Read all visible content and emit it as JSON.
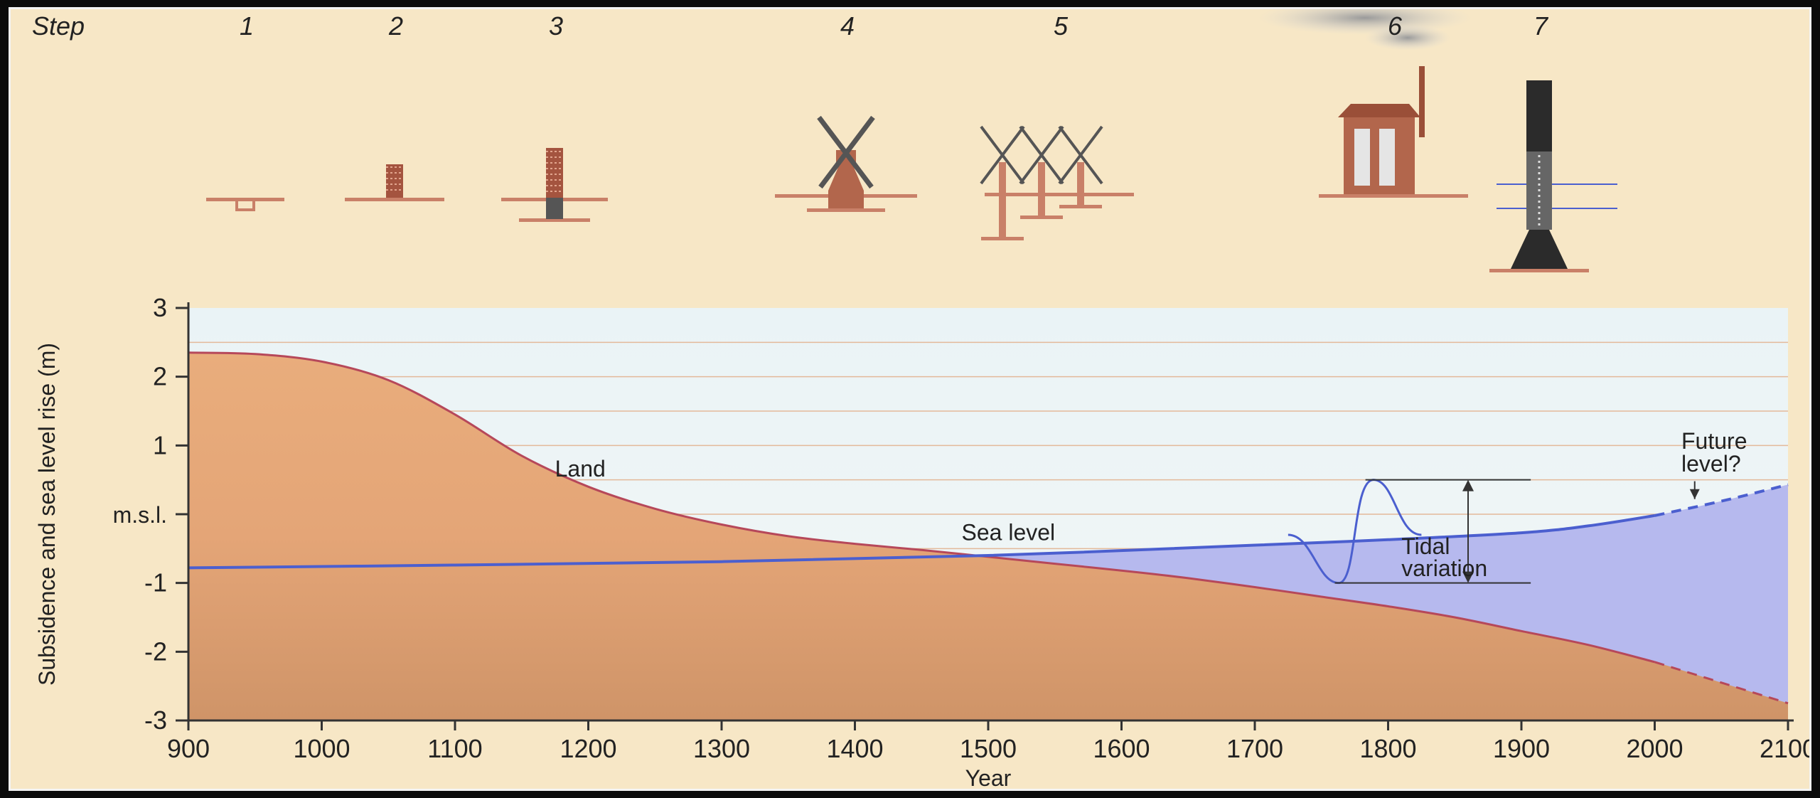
{
  "steps": {
    "label": "Step",
    "items": [
      {
        "n": "1",
        "icon": "ditch-icon"
      },
      {
        "n": "2",
        "icon": "mound-icon"
      },
      {
        "n": "3",
        "icon": "dyke-icon"
      },
      {
        "n": "4",
        "icon": "windmill-icon"
      },
      {
        "n": "5",
        "icon": "windmill-row-icon"
      },
      {
        "n": "6",
        "icon": "steam-pump-house-icon"
      },
      {
        "n": "7",
        "icon": "modern-pump-tower-icon"
      }
    ]
  },
  "chart_data": {
    "type": "line",
    "xlabel": "Year",
    "ylabel": "Subsidence and sea level rise (m)",
    "xlim": [
      900,
      2100
    ],
    "ylim": [
      -3,
      3
    ],
    "x_ticks": [
      900,
      1000,
      1100,
      1200,
      1300,
      1400,
      1500,
      1600,
      1700,
      1800,
      1900,
      2000,
      2100
    ],
    "y_ticks": [
      {
        "v": 3,
        "label": "3"
      },
      {
        "v": 2,
        "label": "2"
      },
      {
        "v": 1,
        "label": "1"
      },
      {
        "v": 0,
        "label": "m.s.l."
      },
      {
        "v": -1,
        "label": "-1"
      },
      {
        "v": -2,
        "label": "-2"
      },
      {
        "v": -3,
        "label": "-3"
      }
    ],
    "series": [
      {
        "name": "Land",
        "x": [
          900,
          950,
          1000,
          1050,
          1100,
          1150,
          1200,
          1250,
          1300,
          1350,
          1400,
          1450,
          1500,
          1550,
          1600,
          1650,
          1700,
          1750,
          1800,
          1850,
          1900,
          1950,
          2000,
          2050,
          2100
        ],
        "y": [
          2.35,
          2.33,
          2.22,
          1.95,
          1.45,
          0.85,
          0.4,
          0.08,
          -0.15,
          -0.32,
          -0.43,
          -0.52,
          -0.62,
          -0.72,
          -0.82,
          -0.93,
          -1.06,
          -1.2,
          -1.34,
          -1.5,
          -1.7,
          -1.9,
          -2.15,
          -2.45,
          -2.75
        ],
        "projected_from": 2000
      },
      {
        "name": "Sea level",
        "x": [
          900,
          1100,
          1300,
          1500,
          1700,
          1800,
          1900,
          1950,
          2000,
          2050,
          2100
        ],
        "y": [
          -0.78,
          -0.74,
          -0.69,
          -0.6,
          -0.45,
          -0.37,
          -0.27,
          -0.17,
          -0.02,
          0.19,
          0.43
        ],
        "projected_from": 2000
      }
    ],
    "annotations": [
      {
        "text": "Land",
        "x": 1175,
        "y": 0.55
      },
      {
        "text": "Sea level",
        "x": 1480,
        "y": -0.38
      },
      {
        "text": "Tidal",
        "x": 1810,
        "y": -0.58
      },
      {
        "text": "variation",
        "x": 1810,
        "y": -0.9
      },
      {
        "text": "Future",
        "x": 2020,
        "y": 0.95
      },
      {
        "text": "level?",
        "x": 2020,
        "y": 0.62
      }
    ],
    "tidal_variation": {
      "x": 1725,
      "center": -0.3,
      "high": 0.5,
      "low": -1.0
    },
    "colors": {
      "land": "#e7a97a",
      "land_line": "#b6485a",
      "sea": "#b6b9ee",
      "sea_line": "#4b5fcf",
      "sky": "#ebf3f5",
      "grid": "#e3b99a",
      "background": "#f7e7c6"
    }
  }
}
